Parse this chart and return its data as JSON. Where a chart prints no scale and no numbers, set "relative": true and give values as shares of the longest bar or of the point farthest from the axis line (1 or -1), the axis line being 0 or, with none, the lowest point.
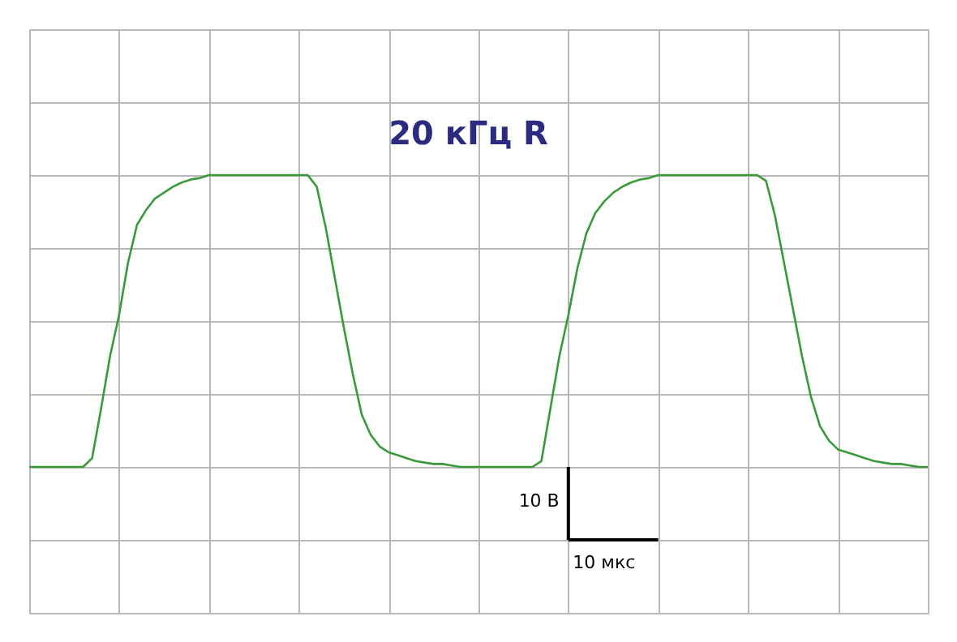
{
  "chart_data": {
    "type": "line",
    "relative": true,
    "grid": true,
    "marker": "none",
    "line_style": "solid",
    "categories": [
      null,
      null,
      null,
      null,
      null,
      null,
      null,
      null,
      null,
      null,
      null,
      null,
      null,
      null,
      null,
      null,
      null,
      null,
      null,
      null,
      null,
      null,
      null,
      null,
      null,
      null,
      null,
      null,
      null,
      null,
      null,
      null,
      null,
      null,
      null,
      null,
      null,
      null,
      null,
      null,
      null,
      null,
      null,
      null,
      null,
      null,
      null,
      null,
      null,
      null,
      null,
      null,
      null,
      null,
      null,
      null,
      null,
      null,
      null,
      null,
      null,
      null,
      null,
      null,
      null,
      null,
      null,
      null,
      null,
      null,
      null,
      null,
      null,
      null,
      null,
      null,
      null,
      null,
      null,
      null,
      null,
      null,
      null,
      null,
      null,
      null,
      null,
      null,
      null,
      null,
      null,
      null,
      null,
      null,
      null,
      null,
      null,
      null,
      null,
      null,
      null
    ],
    "series": [
      {
        "color": "#3a9a3a",
        "values": [
          0,
          0,
          0,
          0,
          0,
          0,
          0,
          0.03,
          0.2,
          0.38,
          0.52,
          0.7,
          0.83,
          0.88,
          0.92,
          0.94,
          0.96,
          0.975,
          0.985,
          0.99,
          1,
          1,
          1,
          1,
          1,
          1,
          1,
          1,
          1,
          1,
          1,
          1,
          0.96,
          0.82,
          0.65,
          0.48,
          0.32,
          0.18,
          0.11,
          0.07,
          0.05,
          0.04,
          0.03,
          0.02,
          0.015,
          0.01,
          0.01,
          0.005,
          0,
          0,
          0,
          0,
          0,
          0,
          0,
          0,
          0,
          0.02,
          0.2,
          0.38,
          0.52,
          0.68,
          0.8,
          0.87,
          0.91,
          0.94,
          0.96,
          0.975,
          0.985,
          0.99,
          1,
          1,
          1,
          1,
          1,
          1,
          1,
          1,
          1,
          1,
          1,
          1,
          0.98,
          0.86,
          0.7,
          0.54,
          0.38,
          0.24,
          0.14,
          0.09,
          0.06,
          0.05,
          0.04,
          0.03,
          0.02,
          0.015,
          0.01,
          0.01,
          0.005,
          0,
          0
        ]
      }
    ],
    "annotations": [
      "20 кГц R",
      "10 В",
      "10 мкс"
    ]
  }
}
